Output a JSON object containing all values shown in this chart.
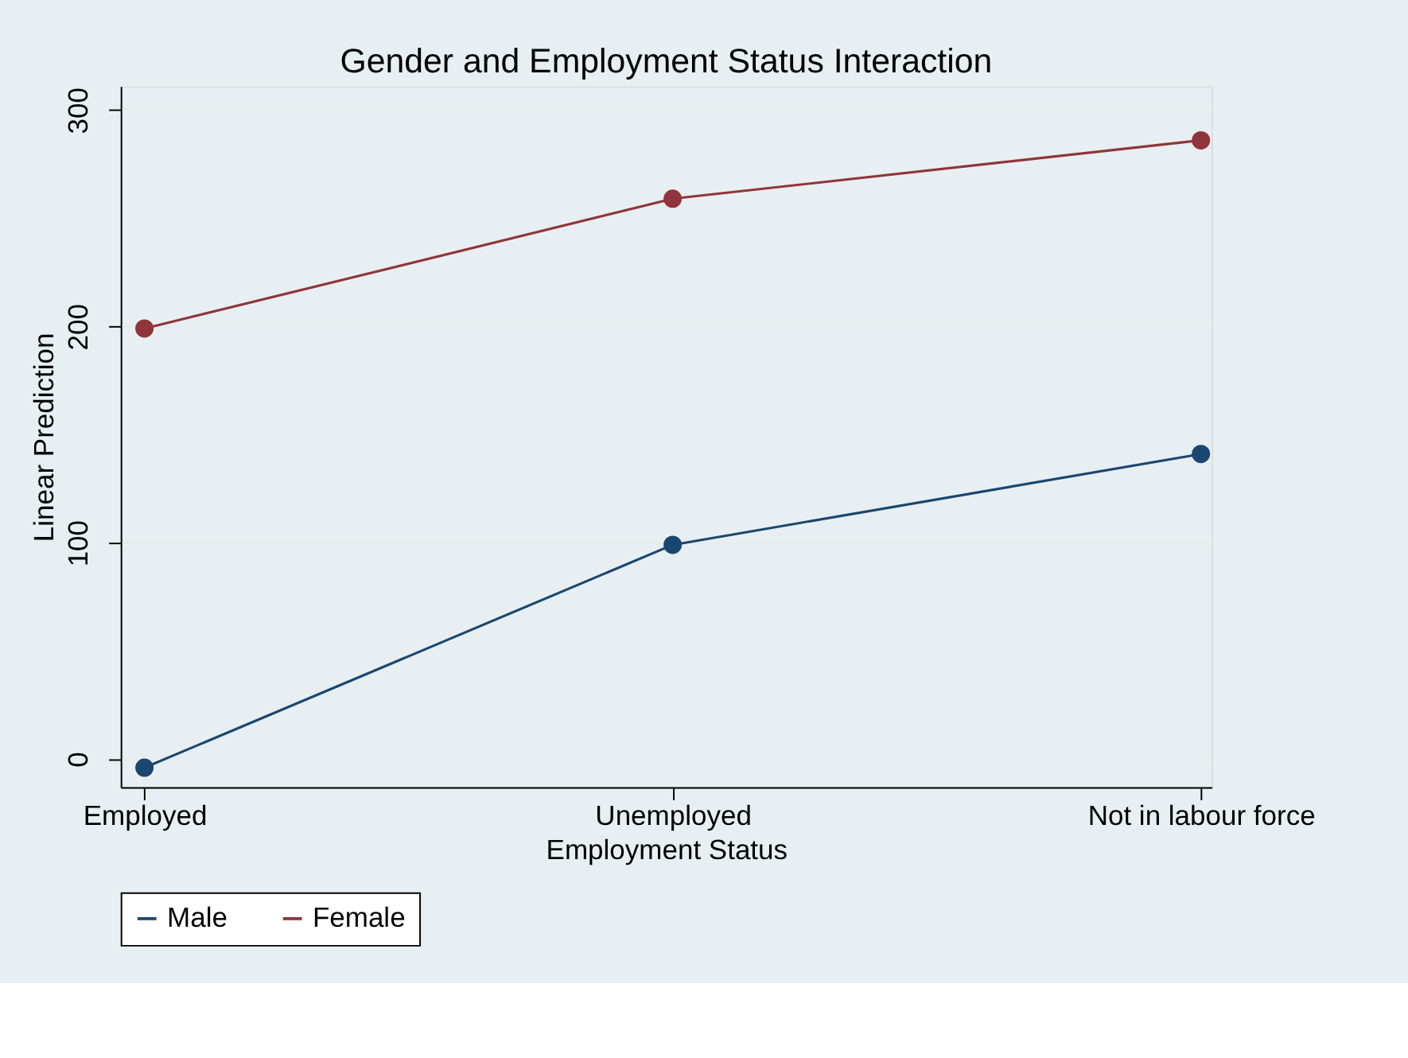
{
  "chart_data": {
    "type": "line",
    "title": "Gender and Employment Status Interaction",
    "xlabel": "Employment Status",
    "ylabel": "Linear Prediction",
    "categories": [
      "Employed",
      "Unemployed",
      "Not in labour force"
    ],
    "series": [
      {
        "name": "Male",
        "color": "#1a476f",
        "values": [
          -4,
          99,
          141
        ]
      },
      {
        "name": "Female",
        "color": "#90353b",
        "values": [
          199,
          259,
          286
        ]
      }
    ],
    "ylim": [
      -13,
      311
    ],
    "yticks": [
      0,
      100,
      200,
      300
    ],
    "grid": "y",
    "legend": "bottom",
    "marker": "circle",
    "line_style": "solid"
  }
}
